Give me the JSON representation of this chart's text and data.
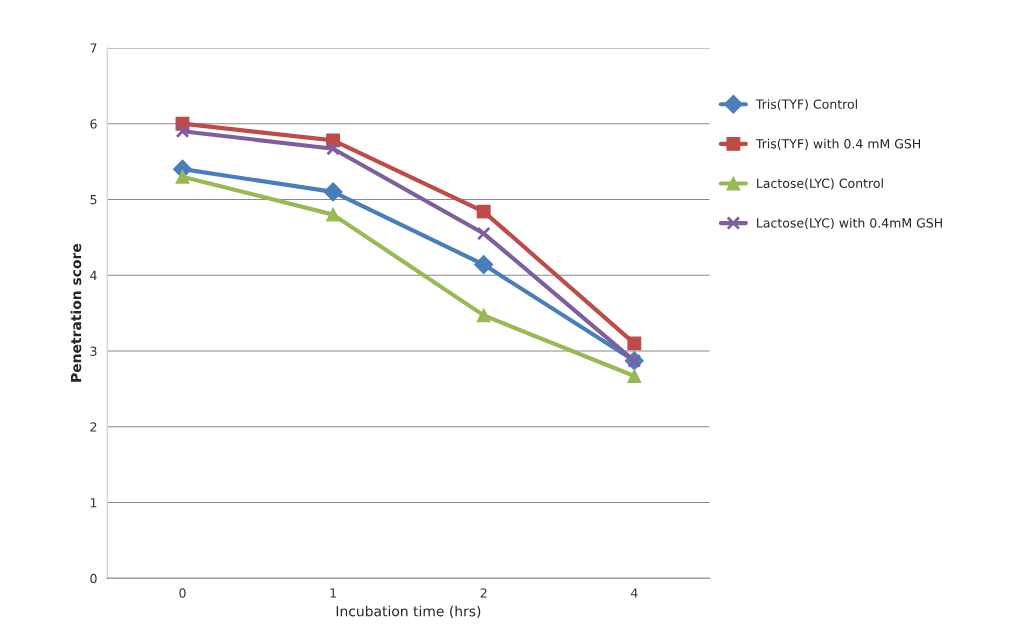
{
  "chart_data": {
    "type": "line",
    "xlabel": "Incubation time (hrs)",
    "ylabel": "Penetration score",
    "categories": [
      "0",
      "1",
      "2",
      "4"
    ],
    "series": [
      {
        "name": "Tris(TYF) Control",
        "color": "#4a7ebb",
        "marker": "diamond",
        "values": [
          5.4,
          5.1,
          4.14,
          2.87
        ]
      },
      {
        "name": "Tris(TYF) with 0.4 mM GSH",
        "color": "#be4b48",
        "marker": "square",
        "values": [
          6.0,
          5.78,
          4.84,
          3.1
        ]
      },
      {
        "name": "Lactose(LYC) Control",
        "color": "#98b954",
        "marker": "triangle",
        "values": [
          5.3,
          4.8,
          3.47,
          2.67
        ]
      },
      {
        "name": "Lactose(LYC) with 0.4mM GSH",
        "color": "#7d5fa0",
        "marker": "cross",
        "values": [
          5.9,
          5.67,
          4.55,
          2.87
        ]
      }
    ],
    "ylim": [
      0,
      7
    ],
    "yticks": [
      0,
      1,
      2,
      3,
      4,
      5,
      6,
      7
    ],
    "grid": "y",
    "legend": "right"
  }
}
